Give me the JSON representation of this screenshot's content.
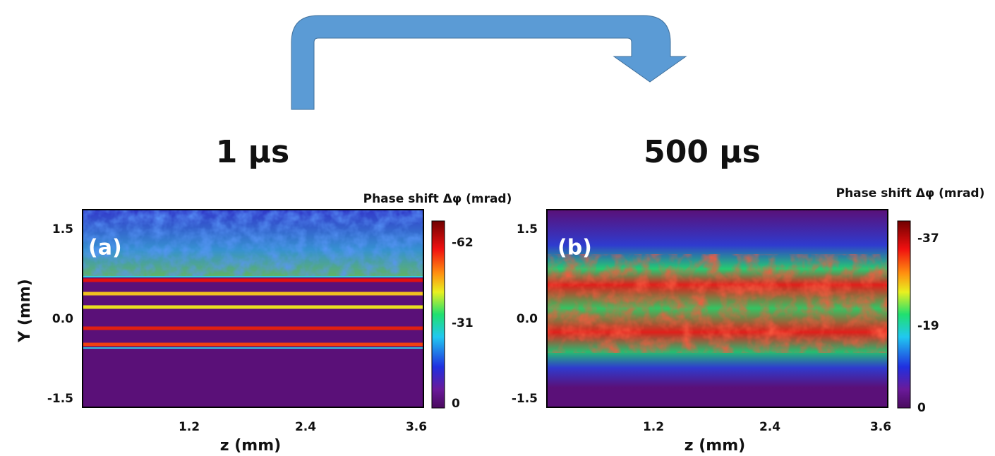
{
  "panels": [
    {
      "time": "1 µs",
      "label": "(a)",
      "colorbar_title": "Phase shift Δφ (mrad)",
      "colorbar_ticks": [
        "-62",
        "-31",
        "0"
      ],
      "y_axis_label": "Y (mm)",
      "yticks": [
        "1.5",
        "0.0",
        "-1.5"
      ],
      "x_axis_label": "z (mm)",
      "xticks": [
        "1.2",
        "2.4",
        "3.6"
      ]
    },
    {
      "time": "500 µs",
      "label": "(b)",
      "colorbar_title": "Phase shift Δφ (mrad)",
      "colorbar_ticks": [
        "-37",
        "-19",
        "0"
      ],
      "yticks": [
        "1.5",
        "0.0",
        "-1.5"
      ],
      "x_axis_label": "z (mm)",
      "xticks": [
        "1.2",
        "2.4",
        "3.6"
      ]
    }
  ]
}
